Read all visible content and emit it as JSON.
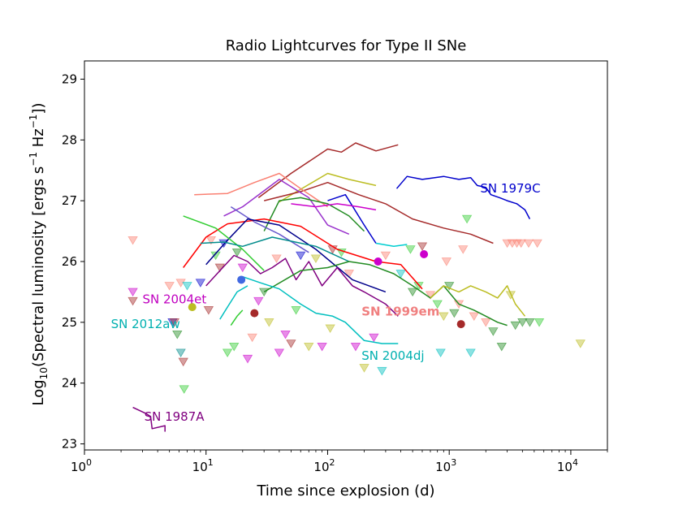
{
  "chart_data": {
    "type": "scatter",
    "title": "Radio Lightcurves for Type II SNe",
    "xlabel": "Time since explosion (d)",
    "ylabel": "Log10(Spectral luminosity [ergs s^-1 Hz^-1])",
    "ylabel_parts": {
      "pre": "Log",
      "sub1": "10",
      "mid": "(Spectral luminosity [ergs s",
      "sup1": "−1",
      "mid2": " Hz",
      "sup2": "−1",
      "post": "])"
    },
    "xscale": "log",
    "xlim": [
      1,
      20000
    ],
    "ylim": [
      22.9,
      29.3
    ],
    "x_ticks": [
      {
        "value": 1,
        "base": "10",
        "exp": "0"
      },
      {
        "value": 10,
        "base": "10",
        "exp": "1"
      },
      {
        "value": 100,
        "base": "10",
        "exp": "2"
      },
      {
        "value": 1000,
        "base": "10",
        "exp": "3"
      },
      {
        "value": 10000,
        "base": "10",
        "exp": "4"
      }
    ],
    "y_ticks": [
      {
        "value": 23,
        "label": "23"
      },
      {
        "value": 24,
        "label": "24"
      },
      {
        "value": 25,
        "label": "25"
      },
      {
        "value": 26,
        "label": "26"
      },
      {
        "value": 27,
        "label": "27"
      },
      {
        "value": 28,
        "label": "28"
      },
      {
        "value": 29,
        "label": "29"
      }
    ],
    "series": [
      {
        "name": "brown-upper",
        "color": "#a52a2a",
        "x": [
          27,
          50,
          100,
          130,
          170,
          250,
          380
        ],
        "y": [
          27.05,
          27.45,
          27.85,
          27.8,
          27.95,
          27.82,
          27.92
        ]
      },
      {
        "name": "khaki",
        "color": "#bcbd22",
        "x": [
          40,
          100,
          150,
          250
        ],
        "y": [
          26.98,
          27.45,
          27.35,
          27.25
        ]
      },
      {
        "name": "SN 1979C",
        "color": "#0000cc",
        "x": [
          370,
          450,
          600,
          900,
          1200,
          1500,
          1700,
          2000,
          2200,
          2600,
          3000,
          3600,
          4200,
          4600
        ],
        "y": [
          27.2,
          27.4,
          27.35,
          27.4,
          27.35,
          27.38,
          27.25,
          27.22,
          27.1,
          27.05,
          27.0,
          26.95,
          26.85,
          26.7
        ]
      },
      {
        "name": "brown-long",
        "color": "#a52a2a",
        "x": [
          30,
          60,
          100,
          180,
          300,
          500,
          900,
          1500,
          2300
        ],
        "y": [
          27.0,
          27.15,
          27.3,
          27.1,
          26.95,
          26.7,
          26.55,
          26.45,
          26.3
        ]
      },
      {
        "name": "salmon",
        "color": "#fa8072",
        "x": [
          8,
          15,
          25,
          40,
          60,
          100
        ],
        "y": [
          27.1,
          27.12,
          27.3,
          27.45,
          27.2,
          26.9
        ]
      },
      {
        "name": "purple-peak",
        "color": "#9932cc",
        "x": [
          14,
          20,
          40,
          70,
          100,
          150
        ],
        "y": [
          26.75,
          26.9,
          27.35,
          27.05,
          26.6,
          26.45
        ]
      },
      {
        "name": "green",
        "color": "#228b22",
        "x": [
          30,
          40,
          60,
          100,
          150,
          200
        ],
        "y": [
          26.5,
          27.0,
          27.05,
          26.95,
          26.75,
          26.5
        ]
      },
      {
        "name": "blue-b",
        "color": "#0000cd",
        "x": [
          100,
          140,
          200,
          250
        ],
        "y": [
          27.0,
          27.1,
          26.6,
          26.3
        ]
      },
      {
        "name": "magenta",
        "color": "#cc00cc",
        "x": [
          50,
          80,
          120,
          180,
          250
        ],
        "y": [
          26.95,
          26.9,
          26.95,
          26.9,
          26.85
        ]
      },
      {
        "name": "slate",
        "color": "#6a5acd",
        "x": [
          16,
          25,
          40,
          70
        ],
        "y": [
          26.9,
          26.65,
          26.45,
          26.15
        ]
      },
      {
        "name": "red",
        "color": "#ff0000",
        "x": [
          6.5,
          10,
          15,
          30,
          60,
          120,
          250,
          400,
          600
        ],
        "y": [
          25.9,
          26.4,
          26.62,
          26.7,
          26.58,
          26.2,
          26.0,
          25.95,
          25.55
        ]
      },
      {
        "name": "navy",
        "color": "#00008b",
        "x": [
          10,
          15,
          22,
          40,
          80,
          160,
          300
        ],
        "y": [
          25.95,
          26.35,
          26.7,
          26.6,
          26.2,
          25.7,
          25.5
        ]
      },
      {
        "name": "lime",
        "color": "#32cd32",
        "x": [
          6.5,
          12,
          20,
          30
        ],
        "y": [
          26.75,
          26.55,
          26.2,
          25.85
        ]
      },
      {
        "name": "teal-line",
        "color": "#008b8b",
        "x": [
          9,
          14,
          20,
          35,
          80,
          150
        ],
        "y": [
          26.3,
          26.32,
          26.25,
          26.4,
          26.25,
          26.0
        ]
      },
      {
        "name": "cyan-short",
        "color": "#00ced1",
        "x": [
          250,
          350,
          450
        ],
        "y": [
          26.3,
          26.25,
          26.28
        ]
      },
      {
        "name": "purple-wiggle",
        "color": "#800080",
        "x": [
          10,
          13,
          17,
          22,
          28,
          35,
          45,
          55,
          70,
          90,
          120,
          160,
          200,
          300,
          380
        ],
        "y": [
          25.6,
          25.85,
          26.1,
          26.0,
          25.8,
          25.9,
          26.05,
          25.7,
          26.0,
          25.6,
          25.9,
          25.6,
          25.5,
          25.3,
          25.1
        ]
      },
      {
        "name": "green-long",
        "color": "#228b22",
        "x": [
          30,
          60,
          100,
          150,
          220,
          350,
          500,
          700,
          900,
          1200,
          1600,
          2000,
          2500,
          3000
        ],
        "y": [
          25.5,
          25.85,
          25.9,
          26.0,
          25.95,
          25.8,
          25.6,
          25.4,
          25.6,
          25.3,
          25.2,
          25.1,
          25.0,
          24.95
        ]
      },
      {
        "name": "khaki-long",
        "color": "#bcbd22",
        "x": [
          700,
          900,
          1200,
          1500,
          2000,
          2500,
          3000,
          3500,
          4200
        ],
        "y": [
          25.4,
          25.6,
          25.5,
          25.6,
          25.5,
          25.4,
          25.6,
          25.3,
          25.1
        ]
      },
      {
        "name": "SN 2004dj",
        "color": "#00bfbf",
        "x": [
          20,
          28,
          40,
          60,
          80,
          110,
          140,
          200,
          280,
          380
        ],
        "y": [
          25.75,
          25.65,
          25.55,
          25.3,
          25.15,
          25.1,
          25.0,
          24.7,
          24.65,
          24.65
        ]
      },
      {
        "name": "SN 2012aw",
        "color": "#00bfbf",
        "x": [
          13,
          15,
          18,
          22
        ],
        "y": [
          25.05,
          25.25,
          25.5,
          25.6
        ]
      },
      {
        "name": "lime-short",
        "color": "#32cd32",
        "x": [
          16,
          18,
          20
        ],
        "y": [
          24.95,
          25.1,
          25.2
        ]
      },
      {
        "name": "SN 1987A",
        "color": "#800080",
        "x": [
          2.5,
          3.2,
          3.5,
          3.6,
          4.6,
          4.6
        ],
        "y": [
          23.6,
          23.5,
          23.45,
          23.25,
          23.3,
          23.2
        ]
      }
    ],
    "detections": [
      {
        "x": 7.7,
        "y": 25.25,
        "color": "#bcbd22"
      },
      {
        "x": 19.5,
        "y": 25.7,
        "color": "#4169e1"
      },
      {
        "x": 25,
        "y": 25.15,
        "color": "#a52a2a"
      },
      {
        "x": 260,
        "y": 26.0,
        "color": "#cc00cc"
      },
      {
        "x": 620,
        "y": 26.12,
        "color": "#cc00cc"
      },
      {
        "x": 1250,
        "y": 24.97,
        "color": "#a52a2a"
      }
    ],
    "upper_limits": [
      {
        "x": 2.5,
        "y": 26.35,
        "color": "#fa8072"
      },
      {
        "x": 2.5,
        "y": 25.5,
        "color": "#cc00cc"
      },
      {
        "x": 2.5,
        "y": 25.35,
        "color": "#a52a2a"
      },
      {
        "x": 5.3,
        "y": 25.0,
        "color": "#0000cd"
      },
      {
        "x": 5.5,
        "y": 25.0,
        "color": "#a52a2a"
      },
      {
        "x": 5.8,
        "y": 24.8,
        "color": "#228b22"
      },
      {
        "x": 6.2,
        "y": 24.5,
        "color": "#008b8b"
      },
      {
        "x": 6.5,
        "y": 24.35,
        "color": "#a52a2a"
      },
      {
        "x": 6.6,
        "y": 23.9,
        "color": "#32cd32"
      },
      {
        "x": 5.0,
        "y": 25.6,
        "color": "#fa8072"
      },
      {
        "x": 6.2,
        "y": 25.65,
        "color": "#fa8072"
      },
      {
        "x": 7.0,
        "y": 25.6,
        "color": "#00bfbf"
      },
      {
        "x": 9.0,
        "y": 25.65,
        "color": "#0000cd"
      },
      {
        "x": 10.5,
        "y": 25.2,
        "color": "#a52a2a"
      },
      {
        "x": 11,
        "y": 26.35,
        "color": "#fa8072"
      },
      {
        "x": 12,
        "y": 26.1,
        "color": "#32cd32"
      },
      {
        "x": 13,
        "y": 25.9,
        "color": "#a52a2a"
      },
      {
        "x": 14,
        "y": 26.3,
        "color": "#0000cd"
      },
      {
        "x": 15,
        "y": 24.5,
        "color": "#32cd32"
      },
      {
        "x": 17,
        "y": 24.6,
        "color": "#32cd32"
      },
      {
        "x": 18,
        "y": 26.15,
        "color": "#228b22"
      },
      {
        "x": 20,
        "y": 25.9,
        "color": "#cc00cc"
      },
      {
        "x": 22,
        "y": 24.4,
        "color": "#cc00cc"
      },
      {
        "x": 24,
        "y": 24.75,
        "color": "#fa8072"
      },
      {
        "x": 27,
        "y": 25.35,
        "color": "#cc00cc"
      },
      {
        "x": 30,
        "y": 25.5,
        "color": "#228b22"
      },
      {
        "x": 33,
        "y": 25.0,
        "color": "#bcbd22"
      },
      {
        "x": 38,
        "y": 26.05,
        "color": "#fa8072"
      },
      {
        "x": 40,
        "y": 24.5,
        "color": "#cc00cc"
      },
      {
        "x": 45,
        "y": 24.8,
        "color": "#cc00cc"
      },
      {
        "x": 50,
        "y": 24.65,
        "color": "#a52a2a"
      },
      {
        "x": 55,
        "y": 25.2,
        "color": "#32cd32"
      },
      {
        "x": 60,
        "y": 26.1,
        "color": "#0000cd"
      },
      {
        "x": 70,
        "y": 24.6,
        "color": "#bcbd22"
      },
      {
        "x": 80,
        "y": 26.05,
        "color": "#bcbd22"
      },
      {
        "x": 90,
        "y": 24.6,
        "color": "#cc00cc"
      },
      {
        "x": 105,
        "y": 24.9,
        "color": "#bcbd22"
      },
      {
        "x": 110,
        "y": 26.2,
        "color": "#a52a2a"
      },
      {
        "x": 130,
        "y": 26.15,
        "color": "#32cd32"
      },
      {
        "x": 150,
        "y": 25.8,
        "color": "#fa8072"
      },
      {
        "x": 170,
        "y": 24.6,
        "color": "#cc00cc"
      },
      {
        "x": 200,
        "y": 24.25,
        "color": "#bcbd22"
      },
      {
        "x": 240,
        "y": 24.75,
        "color": "#cc00cc"
      },
      {
        "x": 280,
        "y": 24.2,
        "color": "#00bfbf"
      },
      {
        "x": 300,
        "y": 26.1,
        "color": "#fa8072"
      },
      {
        "x": 400,
        "y": 25.8,
        "color": "#00bfbf"
      },
      {
        "x": 480,
        "y": 26.2,
        "color": "#32cd32"
      },
      {
        "x": 500,
        "y": 25.5,
        "color": "#228b22"
      },
      {
        "x": 560,
        "y": 25.6,
        "color": "#32cd32"
      },
      {
        "x": 600,
        "y": 26.25,
        "color": "#a52a2a"
      },
      {
        "x": 700,
        "y": 25.45,
        "color": "#fa8072"
      },
      {
        "x": 800,
        "y": 25.3,
        "color": "#32cd32"
      },
      {
        "x": 850,
        "y": 24.5,
        "color": "#00bfbf"
      },
      {
        "x": 900,
        "y": 25.1,
        "color": "#bcbd22"
      },
      {
        "x": 950,
        "y": 26.0,
        "color": "#fa8072"
      },
      {
        "x": 1000,
        "y": 25.6,
        "color": "#228b22"
      },
      {
        "x": 1100,
        "y": 25.15,
        "color": "#228b22"
      },
      {
        "x": 1200,
        "y": 25.3,
        "color": "#fa8072"
      },
      {
        "x": 1300,
        "y": 26.2,
        "color": "#fa8072"
      },
      {
        "x": 1400,
        "y": 26.7,
        "color": "#32cd32"
      },
      {
        "x": 1500,
        "y": 24.5,
        "color": "#00bfbf"
      },
      {
        "x": 1600,
        "y": 25.1,
        "color": "#fa8072"
      },
      {
        "x": 2000,
        "y": 25.0,
        "color": "#fa8072"
      },
      {
        "x": 2300,
        "y": 24.85,
        "color": "#228b22"
      },
      {
        "x": 2700,
        "y": 24.6,
        "color": "#228b22"
      },
      {
        "x": 3000,
        "y": 26.3,
        "color": "#fa8072"
      },
      {
        "x": 3300,
        "y": 26.3,
        "color": "#fa8072"
      },
      {
        "x": 3600,
        "y": 26.3,
        "color": "#fa8072"
      },
      {
        "x": 3900,
        "y": 26.3,
        "color": "#fa8072"
      },
      {
        "x": 4500,
        "y": 26.3,
        "color": "#fa8072"
      },
      {
        "x": 5300,
        "y": 26.3,
        "color": "#fa8072"
      },
      {
        "x": 3200,
        "y": 25.45,
        "color": "#bcbd22"
      },
      {
        "x": 3500,
        "y": 24.95,
        "color": "#228b22"
      },
      {
        "x": 4000,
        "y": 25.0,
        "color": "#228b22"
      },
      {
        "x": 4600,
        "y": 25.0,
        "color": "#228b22"
      },
      {
        "x": 5500,
        "y": 25.0,
        "color": "#32cd32"
      },
      {
        "x": 12000,
        "y": 24.65,
        "color": "#bcbd22"
      }
    ],
    "annotations": [
      {
        "text": "SN 1979C",
        "x": 1800,
        "y": 27.2,
        "color": "#0000cc",
        "bold": false
      },
      {
        "text": "SN 2004et",
        "x": 3.0,
        "y": 25.38,
        "color": "#c000c0",
        "bold": false
      },
      {
        "text": "SN 1999em",
        "x": 190,
        "y": 25.18,
        "color": "#f08080",
        "bold": true
      },
      {
        "text": "SN 2012aw",
        "x": 1.65,
        "y": 24.97,
        "color": "#00b0b0",
        "bold": false
      },
      {
        "text": "SN 2004dj",
        "x": 190,
        "y": 24.45,
        "color": "#00b0b0",
        "bold": false
      },
      {
        "text": "SN 1987A",
        "x": 3.1,
        "y": 23.45,
        "color": "#800080",
        "bold": false
      }
    ]
  }
}
